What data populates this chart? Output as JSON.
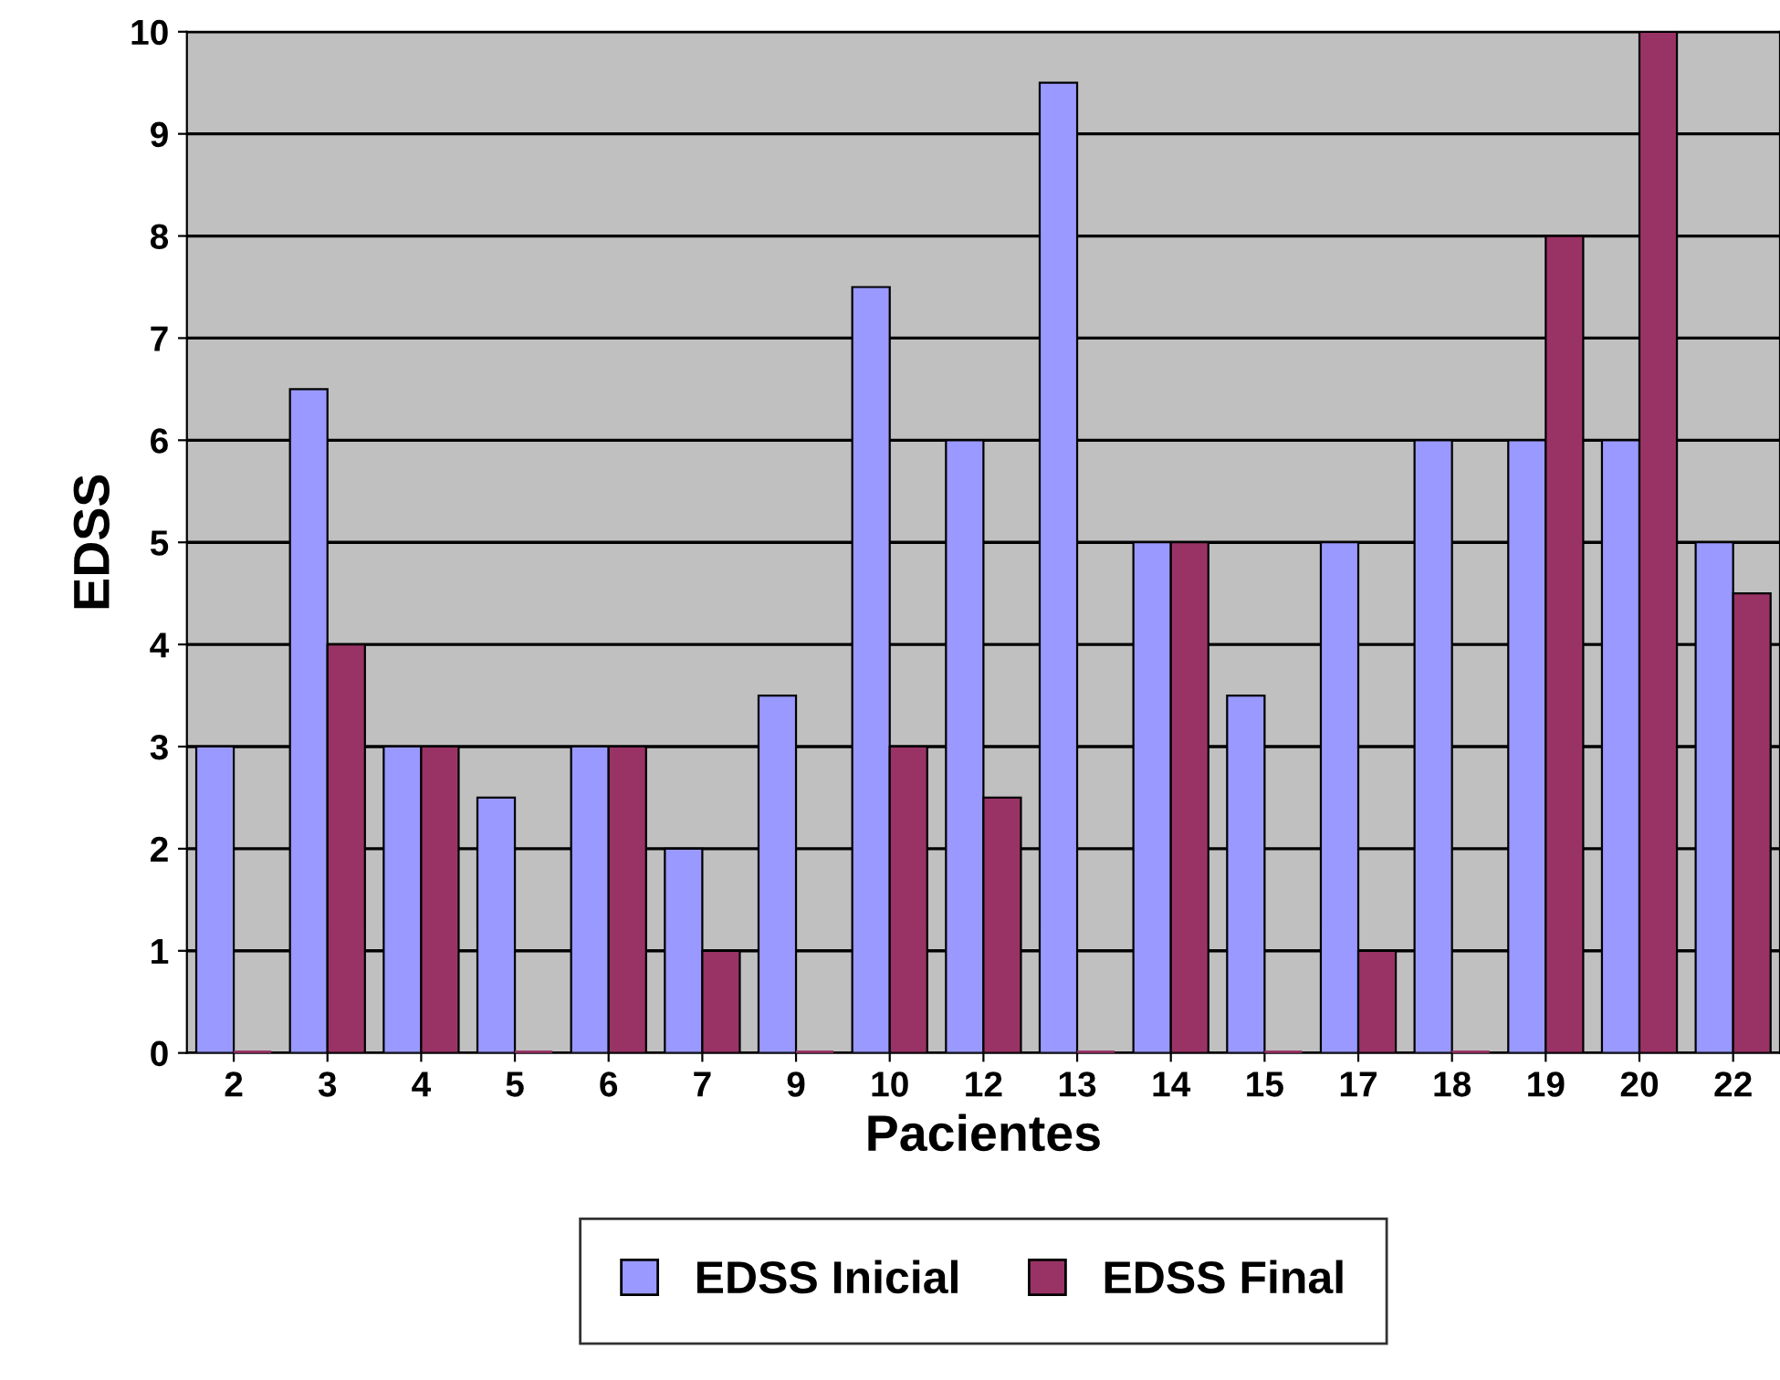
{
  "chart_data": {
    "type": "bar",
    "xlabel": "Pacientes",
    "ylabel": "EDSS",
    "categories": [
      "2",
      "3",
      "4",
      "5",
      "6",
      "7",
      "9",
      "10",
      "12",
      "13",
      "14",
      "15",
      "17",
      "18",
      "19",
      "20",
      "22"
    ],
    "series": [
      {
        "name": "EDSS Inicial",
        "color": "#9999ff",
        "values": [
          3,
          6.5,
          3,
          2.5,
          3,
          2,
          3.5,
          7.5,
          6,
          9.5,
          5,
          3.5,
          5,
          6,
          6,
          6,
          5
        ]
      },
      {
        "name": "EDSS Final",
        "color": "#993366",
        "values": [
          0,
          4,
          3,
          0,
          3,
          1,
          0,
          3,
          2.5,
          0,
          5,
          0,
          1,
          0,
          8,
          10,
          4.5
        ]
      }
    ],
    "ylim": [
      0,
      10
    ],
    "yticks": [
      0,
      1,
      2,
      3,
      4,
      5,
      6,
      7,
      8,
      9,
      10
    ],
    "grid": "y",
    "legend": "bottom"
  }
}
